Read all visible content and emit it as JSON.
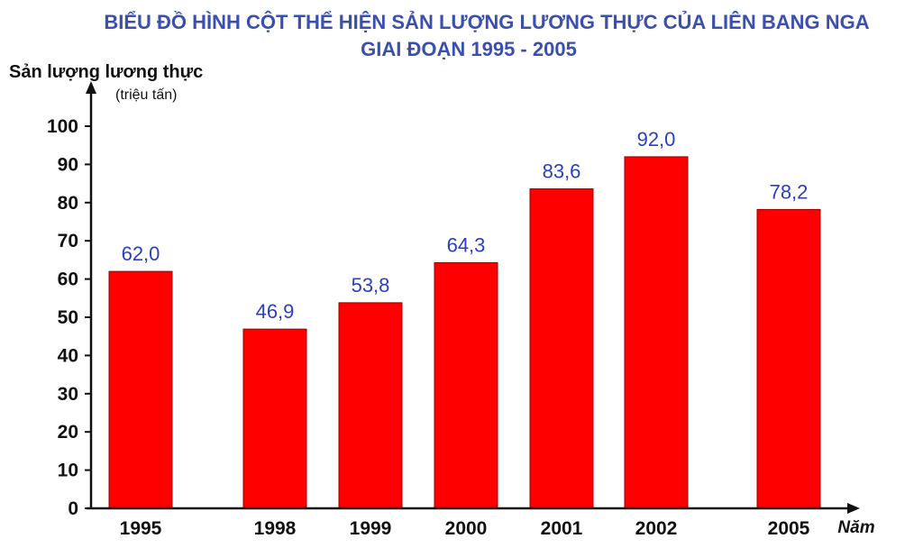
{
  "chart_data": {
    "type": "bar",
    "title_line1": "BIỂU ĐỒ HÌNH CỘT THỂ HIỆN SẢN LƯỢNG LƯƠNG THỰC CỦA LIÊN BANG NGA",
    "title_line2": "GIAI ĐOẠN 1995 - 2005",
    "ylabel": "Sản lượng lương thực",
    "yunit": "(triệu tấn)",
    "xlabel": "Năm",
    "categories": [
      "1995",
      "1998",
      "1999",
      "2000",
      "2001",
      "2002",
      "2005"
    ],
    "x": [
      1995,
      1998,
      1999,
      2000,
      2001,
      2002,
      2005
    ],
    "values": [
      62.0,
      46.9,
      53.8,
      64.3,
      83.6,
      92.0,
      78.2
    ],
    "data_labels": [
      "62,0",
      "46,9",
      "53,8",
      "64,3",
      "83,6",
      "92,0",
      "78,2"
    ],
    "ylim": [
      0,
      100
    ],
    "yticks": [
      "0",
      "10",
      "20",
      "30",
      "40",
      "50",
      "60",
      "70",
      "80",
      "90",
      "100"
    ],
    "bar_color": "#ff0000",
    "label_color": "#2a3fc0",
    "title_color": "#3b4fb0",
    "grid": false,
    "legend": "none"
  }
}
